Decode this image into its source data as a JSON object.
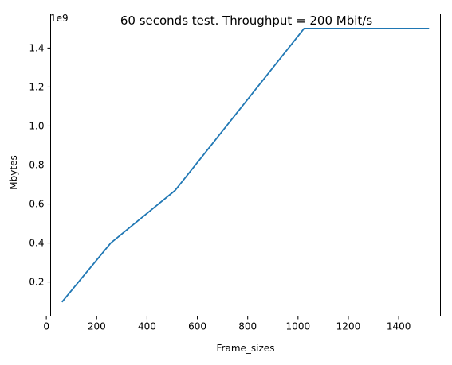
{
  "chart_data": {
    "type": "line",
    "title": "60 seconds test. Throughput = 200 Mbit/s",
    "xlabel": "Frame_sizes",
    "ylabel": "Mbytes",
    "y_offset_label": "1e9",
    "xlim": [
      17,
      1566
    ],
    "ylim": [
      0.025,
      1.575
    ],
    "y_scale_factor": 1000000000,
    "x_ticks": [
      0,
      200,
      400,
      600,
      800,
      1000,
      1200,
      1400
    ],
    "x_tick_labels": [
      "0",
      "200",
      "400",
      "600",
      "800",
      "1000",
      "1200",
      "1400"
    ],
    "y_ticks": [
      0.2,
      0.4,
      0.6,
      0.8,
      1.0,
      1.2,
      1.4
    ],
    "y_tick_labels": [
      "0.2",
      "0.4",
      "0.6",
      "0.8",
      "1.0",
      "1.2",
      "1.4"
    ],
    "grid": false,
    "series": [
      {
        "color": "#1f77b4",
        "x": [
          64,
          128,
          256,
          512,
          1024,
          1518
        ],
        "y": [
          0.1,
          0.2,
          0.4,
          0.67,
          1.5,
          1.5
        ]
      }
    ]
  }
}
